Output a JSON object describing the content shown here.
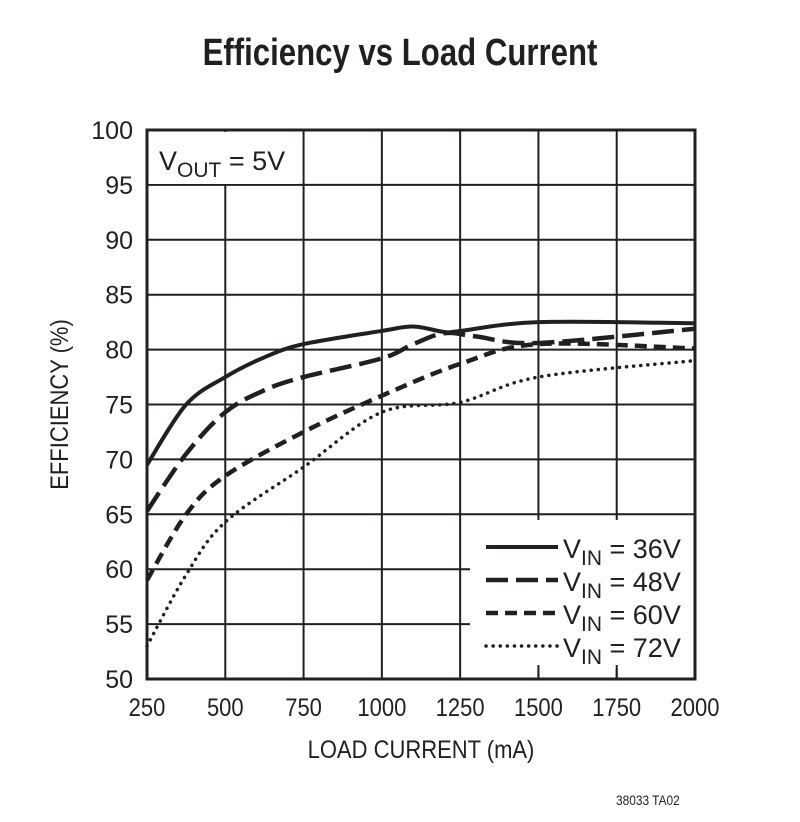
{
  "chart_data": {
    "type": "line",
    "title": "Efficiency vs Load Current",
    "xlabel": "LOAD CURRENT (mA)",
    "ylabel": "EFFICIENCY (%)",
    "xlim": [
      250,
      2000
    ],
    "ylim": [
      50,
      100
    ],
    "xticks": [
      250,
      500,
      750,
      1000,
      1250,
      1500,
      1750,
      2000
    ],
    "yticks": [
      50,
      55,
      60,
      65,
      70,
      75,
      80,
      85,
      90,
      95,
      100
    ],
    "grid": true,
    "legend_position": "bottom-right",
    "annotation": {
      "main": "V",
      "sub": "OUT",
      "rest": " = 5V"
    },
    "series": [
      {
        "name": "VIN = 36V",
        "label_sub": "IN",
        "label_rest": " = 36V",
        "style": "solid",
        "x": [
          250,
          375,
          500,
          625,
          750,
          1000,
          1100,
          1200,
          1250,
          1500,
          2000
        ],
        "y": [
          69.5,
          75,
          77.5,
          79.3,
          80.5,
          81.7,
          82.1,
          81.6,
          81.7,
          82.5,
          82.4
        ]
      },
      {
        "name": "VIN = 48V",
        "label_sub": "IN",
        "label_rest": " = 48V",
        "style": "long-dash",
        "x": [
          250,
          375,
          500,
          625,
          750,
          1000,
          1100,
          1200,
          1300,
          1500,
          2000
        ],
        "y": [
          65.3,
          70.5,
          74.3,
          76.3,
          77.5,
          79.2,
          80.5,
          81.5,
          81.2,
          80.6,
          81.9
        ]
      },
      {
        "name": "VIN = 60V",
        "label_sub": "IN",
        "label_rest": " = 60V",
        "style": "dash",
        "x": [
          250,
          375,
          500,
          750,
          1000,
          1250,
          1500,
          2000
        ],
        "y": [
          59,
          65,
          68.5,
          72.5,
          75.8,
          78.7,
          80.5,
          80.1
        ]
      },
      {
        "name": "VIN = 72V",
        "label_sub": "IN",
        "label_rest": " = 72V",
        "style": "dotted",
        "x": [
          250,
          375,
          500,
          750,
          1000,
          1250,
          1500,
          2000
        ],
        "y": [
          53,
          59.5,
          64.3,
          69.3,
          74.3,
          75.2,
          77.5,
          79
        ]
      }
    ]
  },
  "footer": "38033 TA02",
  "colors": {
    "ink": "#231f20",
    "background": "#ffffff"
  }
}
